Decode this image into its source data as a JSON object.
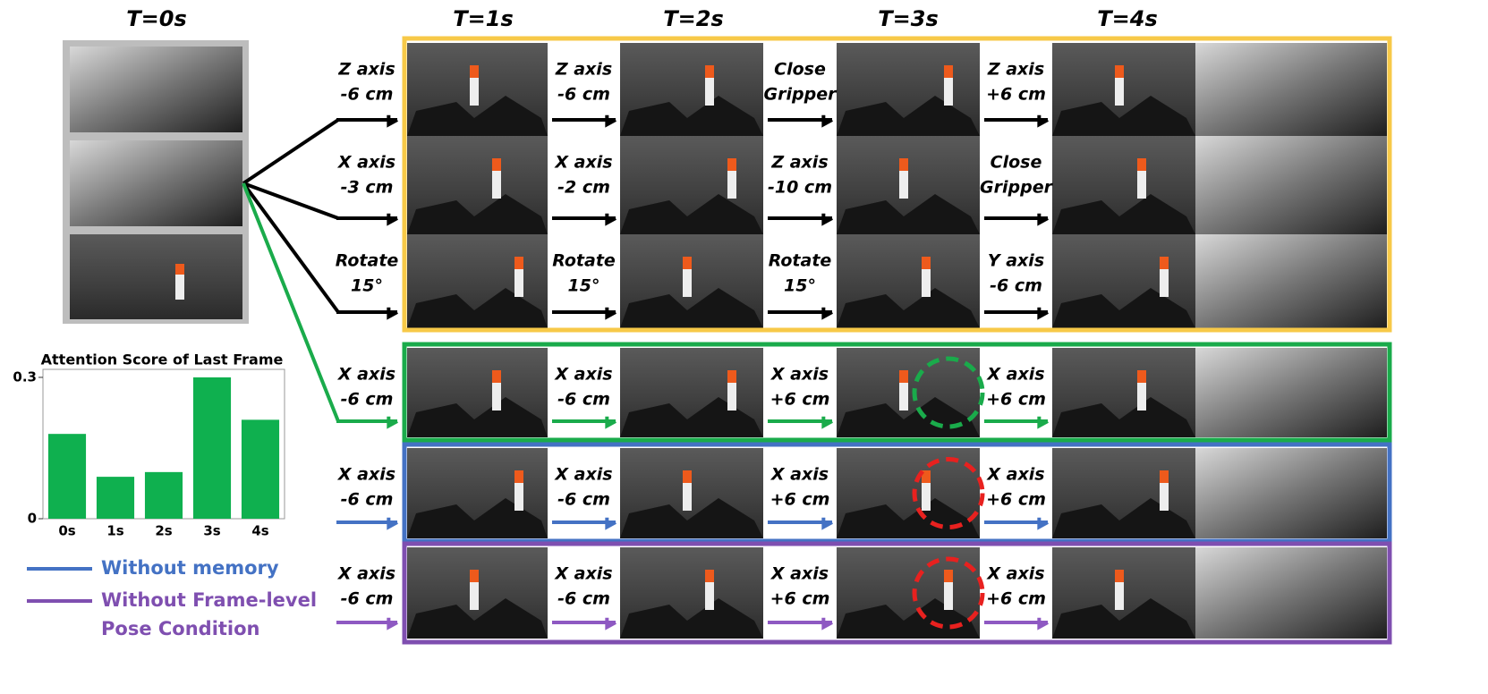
{
  "headers": [
    "T=0s",
    "T=1s",
    "T=2s",
    "T=3s",
    "T=4s"
  ],
  "groups": [
    {
      "color": "#f7c948",
      "arrow_color": "#000000",
      "rows": [
        [
          [
            "Z axis",
            "-6 cm"
          ],
          [
            "Z axis",
            "-6 cm"
          ],
          [
            "Close",
            "Gripper"
          ],
          [
            "Z axis",
            "+6 cm"
          ]
        ],
        [
          [
            "X axis",
            "-3 cm"
          ],
          [
            "X axis",
            "-2 cm"
          ],
          [
            "Z axis",
            "-10 cm"
          ],
          [
            "Close",
            "Gripper"
          ]
        ],
        [
          [
            "Rotate",
            "15°"
          ],
          [
            "Rotate",
            "15°"
          ],
          [
            "Rotate",
            "15°"
          ],
          [
            "Y axis",
            "-6 cm"
          ]
        ]
      ]
    },
    {
      "color": "#1aab4b",
      "arrow_color": "#1aab4b",
      "highlight": "#1aab4b",
      "rows": [
        [
          [
            "X axis",
            "-6 cm"
          ],
          [
            "X axis",
            "-6 cm"
          ],
          [
            "X axis",
            "+6 cm"
          ],
          [
            "X axis",
            "+6 cm"
          ]
        ]
      ]
    },
    {
      "color": "#4472c4",
      "arrow_color": "#4472c4",
      "highlight": "#e8211f",
      "rows": [
        [
          [
            "X axis",
            "-6 cm"
          ],
          [
            "X axis",
            "-6 cm"
          ],
          [
            "X axis",
            "+6 cm"
          ],
          [
            "X axis",
            "+6 cm"
          ]
        ]
      ]
    },
    {
      "color": "#7f4fb0",
      "arrow_color": "#8e59c2",
      "highlight": "#e8211f",
      "rows": [
        [
          [
            "X axis",
            "-6 cm"
          ],
          [
            "X axis",
            "-6 cm"
          ],
          [
            "X axis",
            "+6 cm"
          ],
          [
            "X axis",
            "+6 cm"
          ]
        ]
      ]
    }
  ],
  "chart_data": {
    "type": "bar",
    "title": "Attention Score of Last Frame",
    "categories": [
      "0s",
      "1s",
      "2s",
      "3s",
      "4s"
    ],
    "values": [
      0.18,
      0.089,
      0.099,
      0.3,
      0.21
    ],
    "color": "#0fb04f",
    "ylim": [
      0,
      0.317
    ],
    "yticks": [
      0,
      0.3
    ]
  },
  "legend": [
    {
      "label": [
        "Without memory"
      ],
      "color": "#4472c4"
    },
    {
      "label": [
        "Without Frame-level",
        "Pose Condition"
      ],
      "color": "#7f4fb0"
    }
  ]
}
